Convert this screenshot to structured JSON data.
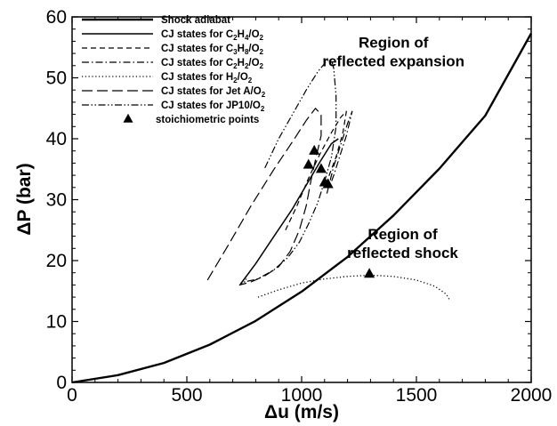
{
  "chart_data": {
    "type": "line",
    "xlabel": "Δu (m/s)",
    "ylabel": "ΔP (bar)",
    "xlim": [
      0,
      2000
    ],
    "ylim": [
      0,
      60
    ],
    "x_ticks": [
      0,
      500,
      1000,
      1500,
      2000
    ],
    "y_ticks": [
      0,
      10,
      20,
      30,
      40,
      50,
      60
    ],
    "grid": false,
    "legend_position": "top-left",
    "annotations": [
      {
        "text": "Region of reflected expansion",
        "lines": [
          "Region of",
          "reflected expansion"
        ],
        "x": 1400,
        "y": 55
      },
      {
        "text": "Region of reflected shock",
        "lines": [
          "Region of",
          "reflected shock"
        ],
        "x": 1440,
        "y": 23.5
      }
    ],
    "series": [
      {
        "name": "Shock adiabat",
        "parts": [
          {
            "text": "Shock adiabat"
          }
        ],
        "style": "solid-thick",
        "points": [
          [
            0,
            0
          ],
          [
            200,
            1.2
          ],
          [
            400,
            3.2
          ],
          [
            600,
            6.2
          ],
          [
            800,
            10.1
          ],
          [
            1000,
            14.9
          ],
          [
            1200,
            20.6
          ],
          [
            1400,
            27.4
          ],
          [
            1600,
            35.1
          ],
          [
            1800,
            43.8
          ],
          [
            2000,
            57.3
          ]
        ]
      },
      {
        "name": "CJ states for C2H4/O2",
        "parts": [
          {
            "text": "CJ states for C"
          },
          {
            "text": "2",
            "sub": true
          },
          {
            "text": "H"
          },
          {
            "text": "4",
            "sub": true
          },
          {
            "text": "/O"
          },
          {
            "text": "2",
            "sub": true
          }
        ],
        "style": "solid",
        "points": [
          [
            735,
            16.2
          ],
          [
            800,
            19.5
          ],
          [
            880,
            24
          ],
          [
            960,
            28.5
          ],
          [
            1030,
            33
          ],
          [
            1080,
            36.2
          ],
          [
            1130,
            39.2
          ],
          [
            1160,
            40
          ]
        ]
      },
      {
        "name": "CJ states for C3H8/O2",
        "parts": [
          {
            "text": "CJ states for C"
          },
          {
            "text": "3",
            "sub": true
          },
          {
            "text": "H"
          },
          {
            "text": "8",
            "sub": true
          },
          {
            "text": "/O"
          },
          {
            "text": "2",
            "sub": true
          }
        ],
        "style": "dashed",
        "points": [
          [
            930,
            25
          ],
          [
            980,
            29
          ],
          [
            1030,
            33.5
          ],
          [
            1080,
            37.5
          ],
          [
            1130,
            41
          ],
          [
            1170,
            43.5
          ],
          [
            1195,
            44.5
          ],
          [
            1180,
            41
          ],
          [
            1150,
            37
          ],
          [
            1120,
            34
          ],
          [
            1100,
            32
          ]
        ]
      },
      {
        "name": "CJ states for C2H2/O2",
        "parts": [
          {
            "text": "CJ states for C"
          },
          {
            "text": "2",
            "sub": true
          },
          {
            "text": "H"
          },
          {
            "text": "2",
            "sub": true
          },
          {
            "text": "/O"
          },
          {
            "text": "2",
            "sub": true
          }
        ],
        "style": "dash-dot",
        "points": [
          [
            1110,
            31
          ],
          [
            1140,
            35.5
          ],
          [
            1170,
            39
          ],
          [
            1200,
            42.5
          ],
          [
            1220,
            44.5
          ],
          [
            1195,
            40.5
          ],
          [
            1165,
            37
          ],
          [
            1140,
            34
          ],
          [
            1120,
            32
          ]
        ]
      },
      {
        "name": "CJ states for H2/O2",
        "parts": [
          {
            "text": "CJ states for H"
          },
          {
            "text": "2",
            "sub": true
          },
          {
            "text": "/O"
          },
          {
            "text": "2",
            "sub": true
          }
        ],
        "style": "dotted",
        "points": [
          [
            810,
            14
          ],
          [
            900,
            15.2
          ],
          [
            1000,
            16.3
          ],
          [
            1100,
            17
          ],
          [
            1200,
            17.4
          ],
          [
            1300,
            17.6
          ],
          [
            1400,
            17.4
          ],
          [
            1500,
            16.8
          ],
          [
            1580,
            15.8
          ],
          [
            1630,
            14.5
          ],
          [
            1645,
            13.5
          ]
        ]
      },
      {
        "name": "CJ states for Jet A/O2",
        "parts": [
          {
            "text": "CJ states for Jet A/O"
          },
          {
            "text": "2",
            "sub": true
          }
        ],
        "style": "long-dash",
        "points": [
          [
            590,
            16.8
          ],
          [
            680,
            22.5
          ],
          [
            780,
            29
          ],
          [
            880,
            35
          ],
          [
            960,
            39.5
          ],
          [
            1020,
            43
          ],
          [
            1060,
            45
          ],
          [
            1085,
            44
          ],
          [
            1085,
            40.5
          ],
          [
            1060,
            36.5
          ],
          [
            1040,
            33
          ],
          [
            1020,
            29
          ],
          [
            990,
            25
          ],
          [
            950,
            21.5
          ],
          [
            900,
            19
          ],
          [
            840,
            17.5
          ],
          [
            780,
            16.5
          ],
          [
            730,
            16
          ],
          [
            760,
            17
          ]
        ]
      },
      {
        "name": "CJ states for JP10/O2",
        "parts": [
          {
            "text": "CJ states for JP10/O"
          },
          {
            "text": "2",
            "sub": true
          }
        ],
        "style": "dash-dot-dot",
        "points": [
          [
            840,
            35.2
          ],
          [
            900,
            40
          ],
          [
            960,
            44
          ],
          [
            1020,
            48
          ],
          [
            1070,
            51
          ],
          [
            1110,
            52.8
          ],
          [
            1130,
            53
          ],
          [
            1140,
            51.5
          ],
          [
            1150,
            47
          ],
          [
            1150,
            42
          ],
          [
            1130,
            37
          ],
          [
            1100,
            33
          ],
          [
            1070,
            29.5
          ],
          [
            1030,
            26
          ],
          [
            990,
            23
          ],
          [
            940,
            20.5
          ],
          [
            880,
            18.5
          ],
          [
            810,
            17
          ],
          [
            750,
            16.5
          ],
          [
            730,
            16.2
          ]
        ]
      },
      {
        "name": "stoichiometric points",
        "parts": [
          {
            "text": "stoichiometric points"
          }
        ],
        "style": "markers",
        "points": [
          [
            1030,
            35.7
          ],
          [
            1055,
            38
          ],
          [
            1085,
            35
          ],
          [
            1100,
            32.8
          ],
          [
            1115,
            32.5
          ],
          [
            1295,
            17.8
          ]
        ]
      }
    ]
  }
}
